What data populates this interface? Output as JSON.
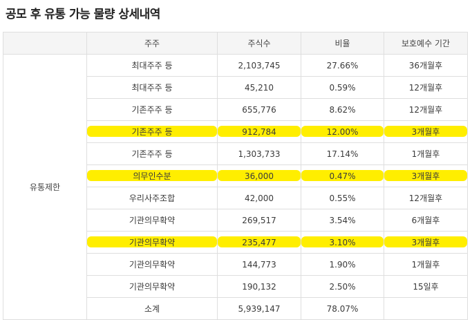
{
  "page": {
    "title": "공모 후 유통 가능 물량 상세내역"
  },
  "colors": {
    "highlight": "#ffee00",
    "header_bg": "#f5f5f5",
    "border": "#dedede"
  },
  "table": {
    "headers": [
      "",
      "주주",
      "주식수",
      "비율",
      "보호예수 기간"
    ],
    "group_label": "유통제한",
    "rows": [
      {
        "holder": "최대주주 등",
        "shares": "2,103,745",
        "ratio": "27.66%",
        "period": "36개월후",
        "highlighted": false
      },
      {
        "holder": "최대주주 등",
        "shares": "45,210",
        "ratio": "0.59%",
        "period": "12개월후",
        "highlighted": false
      },
      {
        "holder": "기존주주 등",
        "shares": "655,776",
        "ratio": "8.62%",
        "period": "12개월후",
        "highlighted": false
      },
      {
        "holder": "기존주주 등",
        "shares": "912,784",
        "ratio": "12.00%",
        "period": "3개월후",
        "highlighted": true
      },
      {
        "holder": "기존주주 등",
        "shares": "1,303,733",
        "ratio": "17.14%",
        "period": "1개월후",
        "highlighted": false
      },
      {
        "holder": "의무인수분",
        "shares": "36,000",
        "ratio": "0.47%",
        "period": "3개월후",
        "highlighted": true
      },
      {
        "holder": "우리사주조합",
        "shares": "42,000",
        "ratio": "0.55%",
        "period": "12개월후",
        "highlighted": false
      },
      {
        "holder": "기관의무확약",
        "shares": "269,517",
        "ratio": "3.54%",
        "period": "6개월후",
        "highlighted": false
      },
      {
        "holder": "기관의무확약",
        "shares": "235,477",
        "ratio": "3.10%",
        "period": "3개월후",
        "highlighted": true
      },
      {
        "holder": "기관의무확약",
        "shares": "144,773",
        "ratio": "1.90%",
        "period": "1개월후",
        "highlighted": false
      },
      {
        "holder": "기관의무확약",
        "shares": "190,132",
        "ratio": "2.50%",
        "period": "15일후",
        "highlighted": false
      },
      {
        "holder": "소계",
        "shares": "5,939,147",
        "ratio": "78.07%",
        "period": "",
        "highlighted": false
      }
    ]
  }
}
